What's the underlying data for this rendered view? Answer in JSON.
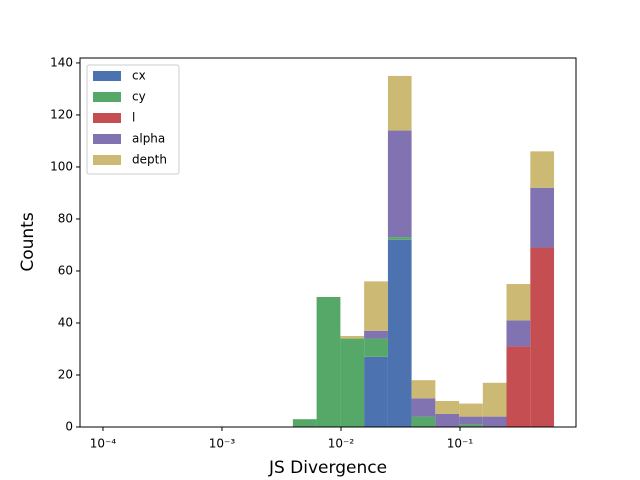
{
  "chart_data": {
    "type": "histogram",
    "xlabel": "JS Divergence",
    "ylabel": "Counts",
    "xscale": "log",
    "bins": [
      0.0001,
      0.000158,
      0.000251,
      0.000397,
      0.000628,
      0.000994,
      0.001574,
      0.00249,
      0.00394,
      0.00624,
      0.00989,
      0.01565,
      0.0248,
      0.0392,
      0.0621,
      0.0983,
      0.1556,
      0.246,
      0.39,
      0.617
    ],
    "series": [
      {
        "name": "cx",
        "color": "#4c72b0",
        "values": [
          0,
          0,
          0,
          0,
          0,
          0,
          0,
          0,
          0,
          0,
          0,
          27,
          72,
          0,
          0,
          0,
          0,
          0,
          0
        ]
      },
      {
        "name": "cy",
        "color": "#55a868",
        "values": [
          0,
          0,
          0,
          0,
          0,
          0,
          0,
          0,
          3,
          50,
          34,
          7,
          1,
          4,
          0,
          1,
          0,
          0,
          0
        ]
      },
      {
        "name": "l",
        "color": "#c44e52",
        "values": [
          0,
          0,
          0,
          0,
          0,
          0,
          0,
          0,
          0,
          0,
          0,
          0,
          0,
          0,
          0,
          0,
          0,
          31,
          69
        ]
      },
      {
        "name": "alpha",
        "color": "#8172b2",
        "values": [
          0,
          0,
          0,
          0,
          0,
          0,
          0,
          0,
          0,
          0,
          0,
          3,
          41,
          7,
          5,
          3,
          4,
          10,
          23
        ]
      },
      {
        "name": "depth",
        "color": "#ccb974",
        "values": [
          0,
          0,
          0,
          0,
          0,
          0,
          0,
          0,
          0,
          0,
          1,
          19,
          21,
          7,
          5,
          5,
          13,
          14,
          14
        ]
      }
    ],
    "xlim": [
      6.41e-05,
      0.944
    ],
    "xticks": [
      {
        "value": 0.0001,
        "label": "10⁻⁴"
      },
      {
        "value": 0.001,
        "label": "10⁻³"
      },
      {
        "value": 0.01,
        "label": "10⁻²"
      },
      {
        "value": 0.1,
        "label": "10⁻¹"
      }
    ],
    "ylim": [
      0,
      141.9
    ],
    "yticks": [
      0,
      20,
      40,
      60,
      80,
      100,
      120,
      140
    ],
    "legend": "upper left"
  }
}
